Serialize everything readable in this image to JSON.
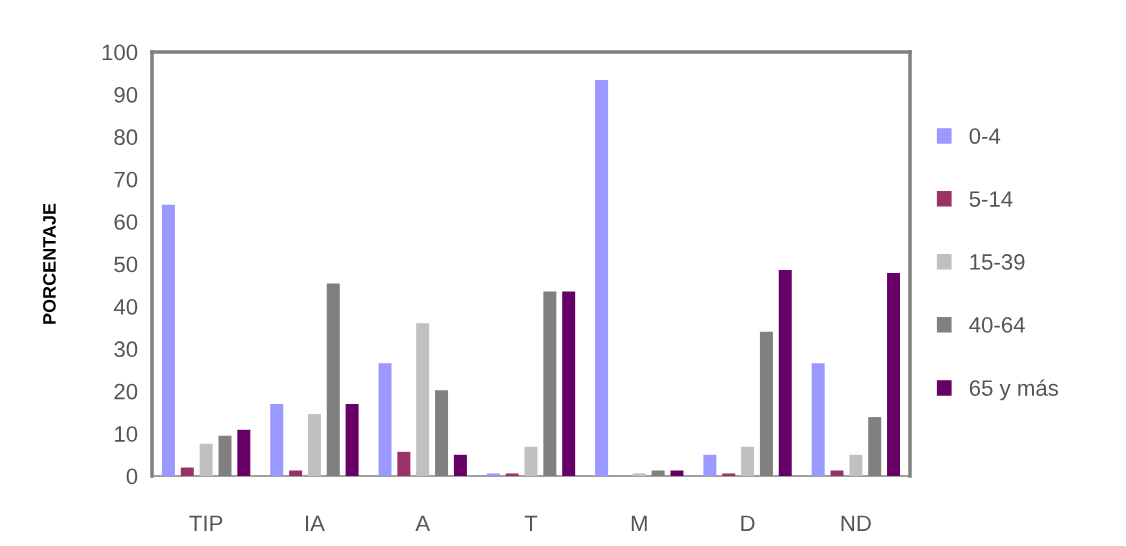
{
  "chart_data": {
    "type": "bar",
    "ylabel": "PORCENTAJE",
    "categories": [
      "TIP",
      "IA",
      "A",
      "T",
      "M",
      "D",
      "ND"
    ],
    "series": [
      {
        "name": "0-4",
        "color": "#9999ff",
        "values": [
          64,
          17,
          26.6,
          0.6,
          93.4,
          5,
          26.6
        ]
      },
      {
        "name": "5-14",
        "color": "#993366",
        "values": [
          2,
          1.3,
          5.7,
          0.6,
          0,
          0.6,
          1.3
        ]
      },
      {
        "name": "15-39",
        "color": "#c0c0c0",
        "values": [
          7.6,
          14.6,
          36,
          6.9,
          0.6,
          6.9,
          5
        ]
      },
      {
        "name": "40-64",
        "color": "#808080",
        "values": [
          9.5,
          45.4,
          20.2,
          43.5,
          1.3,
          34,
          13.9
        ]
      },
      {
        "name": "65 y más",
        "color": "#660066",
        "values": [
          10.9,
          17,
          5,
          43.5,
          1.3,
          48.6,
          47.9
        ]
      }
    ],
    "ylim": [
      0,
      100
    ],
    "yticks": [
      0,
      10,
      20,
      30,
      40,
      50,
      60,
      70,
      80,
      90,
      100
    ],
    "grid": false,
    "legend": "right"
  }
}
